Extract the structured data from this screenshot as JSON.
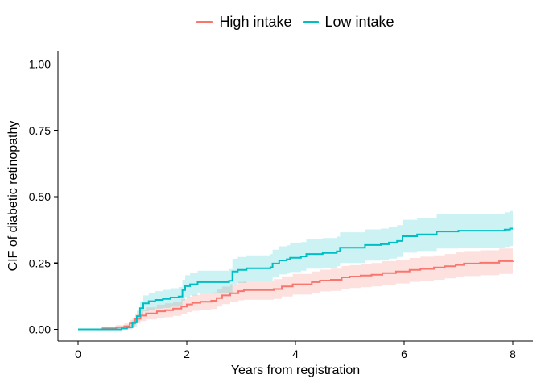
{
  "legend": {
    "items": [
      {
        "label": "High intake",
        "color": "#F8766D"
      },
      {
        "label": "Low intake",
        "color": "#00BFC4"
      }
    ]
  },
  "axes": {
    "x": {
      "label": "Years from registration",
      "tick_values": [
        0,
        2,
        4,
        6,
        8
      ],
      "tick_labels": [
        "0",
        "2",
        "4",
        "6",
        "8"
      ]
    },
    "y": {
      "label": "CIF of diabetic retinopathy",
      "tick_values": [
        0,
        0.25,
        0.5,
        0.75,
        1
      ],
      "tick_labels": [
        "0.00",
        "0.25",
        "0.50",
        "0.75",
        "1.00"
      ]
    }
  },
  "chart_data": {
    "type": "line",
    "subtype": "step-cumulative-incidence-with-confidence-bands",
    "xlabel": "Years from registration",
    "ylabel": "CIF of diabetic retinopathy",
    "xlim": [
      0,
      8
    ],
    "ylim": [
      0,
      1
    ],
    "x_ticks": [
      0,
      2,
      4,
      6,
      8
    ],
    "y_ticks": [
      0,
      0.25,
      0.5,
      0.75,
      1
    ],
    "grid": false,
    "legend_position": "top-center",
    "background": "#ffffff",
    "series": [
      {
        "name": "High intake",
        "color": "#F8766D",
        "band_color": "rgba(248,118,109,0.22)",
        "points": [
          [
            0,
            0
          ],
          [
            0.45,
            0.004
          ],
          [
            0.7,
            0.008
          ],
          [
            0.85,
            0.012
          ],
          [
            0.95,
            0.022
          ],
          [
            1.05,
            0.04
          ],
          [
            1.15,
            0.052
          ],
          [
            1.25,
            0.06
          ],
          [
            1.45,
            0.068
          ],
          [
            1.6,
            0.072
          ],
          [
            1.75,
            0.078
          ],
          [
            1.9,
            0.086
          ],
          [
            2.0,
            0.094
          ],
          [
            2.1,
            0.1
          ],
          [
            2.25,
            0.104
          ],
          [
            2.45,
            0.108
          ],
          [
            2.55,
            0.118
          ],
          [
            2.65,
            0.128
          ],
          [
            2.8,
            0.136
          ],
          [
            2.95,
            0.144
          ],
          [
            3.05,
            0.148
          ],
          [
            3.6,
            0.152
          ],
          [
            3.75,
            0.162
          ],
          [
            3.95,
            0.17
          ],
          [
            4.3,
            0.178
          ],
          [
            4.45,
            0.184
          ],
          [
            4.65,
            0.187
          ],
          [
            4.85,
            0.196
          ],
          [
            5.0,
            0.199
          ],
          [
            5.2,
            0.203
          ],
          [
            5.4,
            0.206
          ],
          [
            5.6,
            0.212
          ],
          [
            5.85,
            0.218
          ],
          [
            6.1,
            0.224
          ],
          [
            6.3,
            0.228
          ],
          [
            6.55,
            0.233
          ],
          [
            6.75,
            0.238
          ],
          [
            6.95,
            0.243
          ],
          [
            7.1,
            0.248
          ],
          [
            7.4,
            0.251
          ],
          [
            7.75,
            0.257
          ],
          [
            8,
            0.258
          ]
        ],
        "band": [
          [
            0,
            0,
            0
          ],
          [
            0.45,
            0,
            0.009
          ],
          [
            0.7,
            0,
            0.016
          ],
          [
            0.85,
            0.002,
            0.022
          ],
          [
            0.95,
            0.008,
            0.036
          ],
          [
            1.05,
            0.022,
            0.058
          ],
          [
            1.15,
            0.031,
            0.073
          ],
          [
            1.25,
            0.037,
            0.083
          ],
          [
            1.45,
            0.043,
            0.093
          ],
          [
            1.6,
            0.046,
            0.098
          ],
          [
            1.75,
            0.051,
            0.105
          ],
          [
            1.9,
            0.058,
            0.114
          ],
          [
            2.0,
            0.065,
            0.123
          ],
          [
            2.1,
            0.07,
            0.13
          ],
          [
            2.25,
            0.073,
            0.135
          ],
          [
            2.45,
            0.077,
            0.139
          ],
          [
            2.55,
            0.086,
            0.15
          ],
          [
            2.65,
            0.095,
            0.161
          ],
          [
            2.8,
            0.102,
            0.17
          ],
          [
            2.95,
            0.109,
            0.179
          ],
          [
            3.05,
            0.112,
            0.184
          ],
          [
            3.6,
            0.115,
            0.189
          ],
          [
            3.75,
            0.124,
            0.2
          ],
          [
            3.95,
            0.131,
            0.209
          ],
          [
            4.3,
            0.138,
            0.218
          ],
          [
            4.45,
            0.143,
            0.225
          ],
          [
            4.65,
            0.145,
            0.229
          ],
          [
            4.85,
            0.153,
            0.239
          ],
          [
            5.0,
            0.156,
            0.242
          ],
          [
            5.2,
            0.159,
            0.247
          ],
          [
            5.4,
            0.162,
            0.25
          ],
          [
            5.6,
            0.167,
            0.257
          ],
          [
            5.85,
            0.173,
            0.263
          ],
          [
            6.1,
            0.179,
            0.269
          ],
          [
            6.3,
            0.182,
            0.274
          ],
          [
            6.55,
            0.187,
            0.279
          ],
          [
            6.75,
            0.192,
            0.284
          ],
          [
            6.95,
            0.196,
            0.29
          ],
          [
            7.1,
            0.201,
            0.295
          ],
          [
            7.4,
            0.204,
            0.298
          ],
          [
            7.75,
            0.209,
            0.305
          ],
          [
            8,
            0.21,
            0.306
          ]
        ]
      },
      {
        "name": "Low intake",
        "color": "#00BFC4",
        "band_color": "rgba(0,191,196,0.20)",
        "points": [
          [
            0,
            0
          ],
          [
            0.8,
            0.003
          ],
          [
            0.9,
            0.008
          ],
          [
            1.0,
            0.026
          ],
          [
            1.08,
            0.05
          ],
          [
            1.14,
            0.08
          ],
          [
            1.2,
            0.098
          ],
          [
            1.3,
            0.106
          ],
          [
            1.42,
            0.111
          ],
          [
            1.56,
            0.115
          ],
          [
            1.7,
            0.12
          ],
          [
            1.85,
            0.124
          ],
          [
            1.92,
            0.148
          ],
          [
            1.97,
            0.163
          ],
          [
            2.06,
            0.17
          ],
          [
            2.2,
            0.178
          ],
          [
            2.78,
            0.183
          ],
          [
            2.84,
            0.218
          ],
          [
            2.94,
            0.224
          ],
          [
            3.1,
            0.23
          ],
          [
            3.54,
            0.234
          ],
          [
            3.58,
            0.248
          ],
          [
            3.7,
            0.26
          ],
          [
            3.84,
            0.264
          ],
          [
            3.9,
            0.27
          ],
          [
            4.1,
            0.275
          ],
          [
            4.2,
            0.284
          ],
          [
            4.5,
            0.288
          ],
          [
            4.76,
            0.294
          ],
          [
            4.82,
            0.308
          ],
          [
            5.28,
            0.318
          ],
          [
            5.57,
            0.321
          ],
          [
            5.72,
            0.327
          ],
          [
            5.87,
            0.333
          ],
          [
            5.97,
            0.351
          ],
          [
            6.24,
            0.358
          ],
          [
            6.6,
            0.369
          ],
          [
            7.0,
            0.372
          ],
          [
            7.85,
            0.376
          ],
          [
            7.95,
            0.38
          ],
          [
            8,
            0.38
          ]
        ],
        "band": [
          [
            0,
            0,
            0
          ],
          [
            0.8,
            0,
            0.008
          ],
          [
            0.9,
            0,
            0.016
          ],
          [
            1.0,
            0.011,
            0.041
          ],
          [
            1.08,
            0.03,
            0.07
          ],
          [
            1.14,
            0.054,
            0.106
          ],
          [
            1.2,
            0.068,
            0.128
          ],
          [
            1.3,
            0.074,
            0.138
          ],
          [
            1.42,
            0.078,
            0.144
          ],
          [
            1.56,
            0.081,
            0.149
          ],
          [
            1.7,
            0.085,
            0.155
          ],
          [
            1.85,
            0.088,
            0.16
          ],
          [
            1.92,
            0.109,
            0.187
          ],
          [
            1.97,
            0.122,
            0.204
          ],
          [
            2.06,
            0.128,
            0.212
          ],
          [
            2.2,
            0.135,
            0.221
          ],
          [
            2.78,
            0.139,
            0.227
          ],
          [
            2.84,
            0.17,
            0.266
          ],
          [
            2.94,
            0.175,
            0.273
          ],
          [
            3.1,
            0.181,
            0.279
          ],
          [
            3.54,
            0.184,
            0.284
          ],
          [
            3.58,
            0.196,
            0.3
          ],
          [
            3.7,
            0.207,
            0.313
          ],
          [
            3.84,
            0.211,
            0.317
          ],
          [
            3.9,
            0.216,
            0.324
          ],
          [
            4.1,
            0.221,
            0.329
          ],
          [
            4.2,
            0.229,
            0.339
          ],
          [
            4.5,
            0.232,
            0.344
          ],
          [
            4.76,
            0.238,
            0.35
          ],
          [
            4.82,
            0.25,
            0.366
          ],
          [
            5.28,
            0.259,
            0.377
          ],
          [
            5.57,
            0.262,
            0.38
          ],
          [
            5.72,
            0.267,
            0.387
          ],
          [
            5.87,
            0.273,
            0.393
          ],
          [
            5.97,
            0.289,
            0.413
          ],
          [
            6.24,
            0.295,
            0.421
          ],
          [
            6.6,
            0.305,
            0.433
          ],
          [
            7.0,
            0.308,
            0.436
          ],
          [
            7.85,
            0.311,
            0.441
          ],
          [
            7.95,
            0.314,
            0.446
          ],
          [
            8,
            0.314,
            0.446
          ]
        ]
      }
    ]
  }
}
